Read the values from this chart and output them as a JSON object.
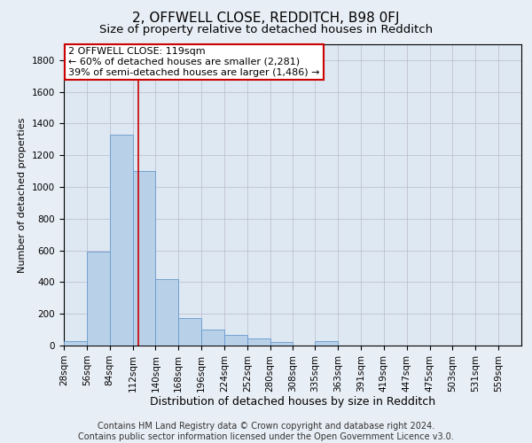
{
  "title1": "2, OFFWELL CLOSE, REDDITCH, B98 0FJ",
  "title2": "Size of property relative to detached houses in Redditch",
  "xlabel": "Distribution of detached houses by size in Redditch",
  "ylabel": "Number of detached properties",
  "bin_edges": [
    28,
    56,
    84,
    112,
    140,
    168,
    196,
    224,
    252,
    280,
    308,
    335,
    363,
    391,
    419,
    447,
    475,
    503,
    531,
    559,
    587
  ],
  "bar_heights": [
    30,
    590,
    1330,
    1100,
    420,
    175,
    100,
    65,
    45,
    20,
    0,
    30,
    0,
    0,
    0,
    0,
    0,
    0,
    0,
    0
  ],
  "bar_color": "#b8d0e8",
  "bar_edge_color": "#6699cc",
  "vline_x": 119,
  "vline_color": "#cc0000",
  "annotation_box_text": "2 OFFWELL CLOSE: 119sqm\n← 60% of detached houses are smaller (2,281)\n39% of semi-detached houses are larger (1,486) →",
  "box_edge_color": "#cc0000",
  "ylim": [
    0,
    1900
  ],
  "yticks": [
    0,
    200,
    400,
    600,
    800,
    1000,
    1200,
    1400,
    1600,
    1800
  ],
  "grid_color": "#bbbbcc",
  "bg_color": "#e8eef5",
  "plot_bg_color": "#dde8f2",
  "footer_text": "Contains HM Land Registry data © Crown copyright and database right 2024.\nContains public sector information licensed under the Open Government Licence v3.0.",
  "title1_fontsize": 11,
  "title2_fontsize": 9.5,
  "xlabel_fontsize": 9,
  "ylabel_fontsize": 8,
  "tick_fontsize": 7.5,
  "annotation_fontsize": 8,
  "footer_fontsize": 7
}
